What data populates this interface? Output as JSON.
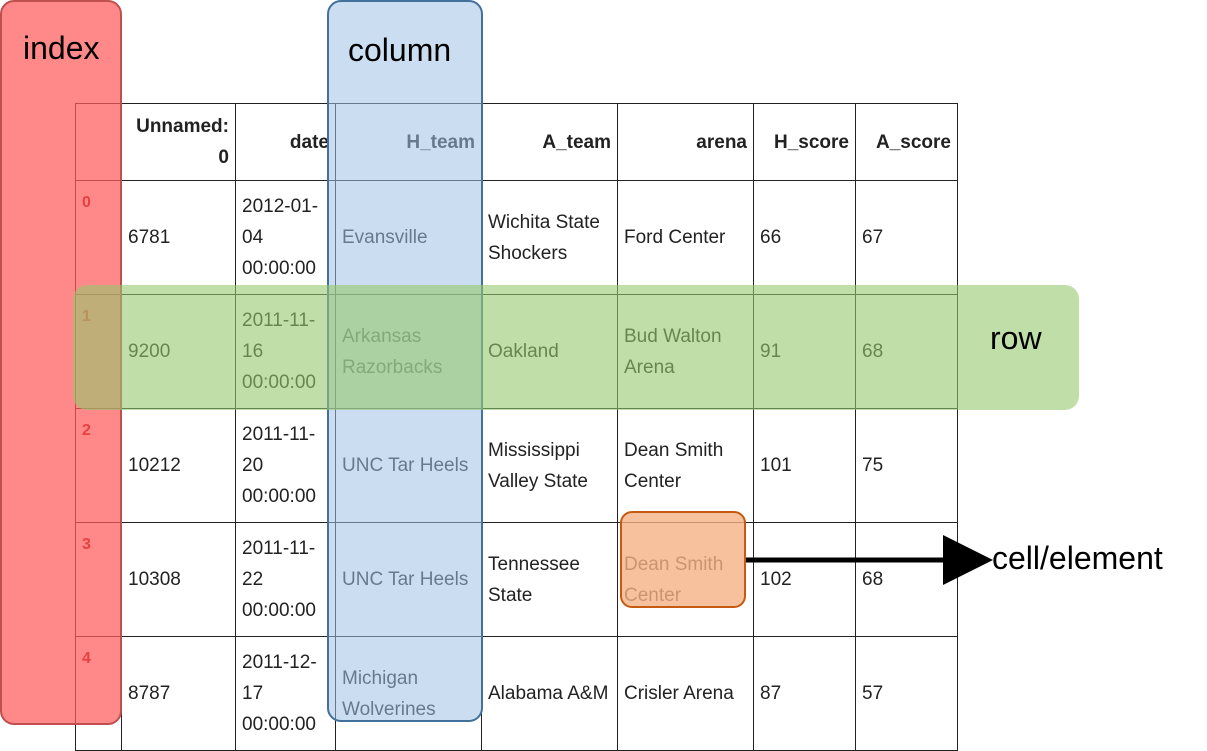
{
  "annotations": {
    "index": "index",
    "column": "column",
    "row": "row",
    "cell": "cell/element"
  },
  "table": {
    "header": [
      "",
      "Unnamed: 0",
      "date",
      "H_team",
      "A_team",
      "arena",
      "H_score",
      "A_score"
    ],
    "rows": [
      {
        "index": "0",
        "cells": [
          "6781",
          "2012-01-04 00:00:00",
          "Evansville",
          "Wichita State Shockers",
          "Ford Center",
          "66",
          "67"
        ]
      },
      {
        "index": "1",
        "cells": [
          "9200",
          "2011-11-16 00:00:00",
          "Arkansas Razorbacks",
          "Oakland",
          "Bud Walton Arena",
          "91",
          "68"
        ]
      },
      {
        "index": "2",
        "cells": [
          "10212",
          "2011-11-20 00:00:00",
          "UNC Tar Heels",
          "Mississippi Valley State",
          "Dean Smith Center",
          "101",
          "75"
        ]
      },
      {
        "index": "3",
        "cells": [
          "10308",
          "2011-11-22 00:00:00",
          "UNC Tar Heels",
          "Tennessee State",
          "Dean Smith Center",
          "102",
          "68"
        ]
      },
      {
        "index": "4",
        "cells": [
          "8787",
          "2011-12-17 00:00:00",
          "Michigan Wolverines",
          "Alabama A&M",
          "Crisler Arena",
          "87",
          "57"
        ]
      }
    ]
  }
}
